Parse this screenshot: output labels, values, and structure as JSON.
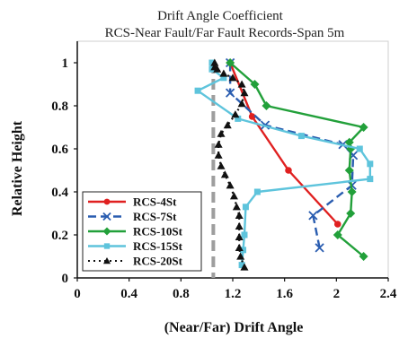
{
  "chart_data": {
    "type": "line",
    "title": "Drift Angle Coefficient",
    "subtitle": "RCS-Near Fault/Far Fault Records-Span 5m",
    "xlabel": "(Near/Far) Drift Angle",
    "ylabel": "Relative Height",
    "xlim": [
      0,
      2.4
    ],
    "ylim": [
      0,
      1.1
    ],
    "xticks": [
      "0",
      "0.4",
      "0.8",
      "1.2",
      "1.6",
      "2",
      "2.4"
    ],
    "yticks": [
      "0",
      "0.2",
      "0.4",
      "0.6",
      "0.8",
      "1"
    ],
    "grid": false,
    "legend_position": "bottom-left",
    "reference_line": {
      "x": 1.05,
      "style": "dashed",
      "color": "#9e9e9e"
    },
    "series": [
      {
        "name": "RCS-4St",
        "color": "#e02020",
        "marker": "circle",
        "line": "solid",
        "x": [
          2.01,
          1.63,
          1.35,
          1.18
        ],
        "y": [
          0.25,
          0.5,
          0.75,
          1.0
        ]
      },
      {
        "name": "RCS-7St",
        "color": "#2a5db0",
        "marker": "x",
        "line": "dashed",
        "x": [
          1.87,
          1.82,
          2.12,
          2.13,
          2.05,
          1.45,
          1.18,
          1.18
        ],
        "y": [
          0.14,
          0.29,
          0.43,
          0.57,
          0.62,
          0.71,
          0.86,
          1.0
        ]
      },
      {
        "name": "RCS-10St",
        "color": "#22a03a",
        "marker": "diamond",
        "line": "solid",
        "x": [
          2.21,
          2.01,
          2.11,
          2.12,
          2.1,
          2.11,
          2.1,
          2.21,
          1.46,
          1.37,
          1.18
        ],
        "y": [
          0.1,
          0.2,
          0.3,
          0.4,
          0.5,
          0.6,
          0.63,
          0.7,
          0.8,
          0.9,
          1.0
        ]
      },
      {
        "name": "RCS-15St",
        "color": "#5ec4dc",
        "marker": "square",
        "line": "solid",
        "x": [
          1.27,
          1.28,
          1.29,
          1.3,
          1.39,
          2.26,
          2.26,
          2.18,
          1.73,
          1.24,
          0.93,
          1.13,
          1.04,
          1.04
        ],
        "y": [
          0.06,
          0.13,
          0.2,
          0.33,
          0.4,
          0.46,
          0.53,
          0.6,
          0.66,
          0.74,
          0.87,
          0.93,
          0.97,
          1.0
        ]
      },
      {
        "name": "RCS-20St",
        "color": "#111111",
        "marker": "triangle",
        "line": "dotted",
        "x": [
          1.29,
          1.26,
          1.25,
          1.25,
          1.25,
          1.25,
          1.23,
          1.21,
          1.18,
          1.14,
          1.11,
          1.09,
          1.09,
          1.11,
          1.16,
          1.22,
          1.27,
          1.29,
          1.27,
          1.2,
          1.13,
          1.08,
          1.06,
          1.06
        ],
        "y": [
          0.05,
          0.1,
          0.14,
          0.19,
          0.24,
          0.29,
          0.33,
          0.38,
          0.43,
          0.48,
          0.52,
          0.57,
          0.62,
          0.67,
          0.71,
          0.76,
          0.81,
          0.86,
          0.9,
          0.93,
          0.95,
          0.97,
          0.98,
          1.0
        ]
      }
    ]
  }
}
